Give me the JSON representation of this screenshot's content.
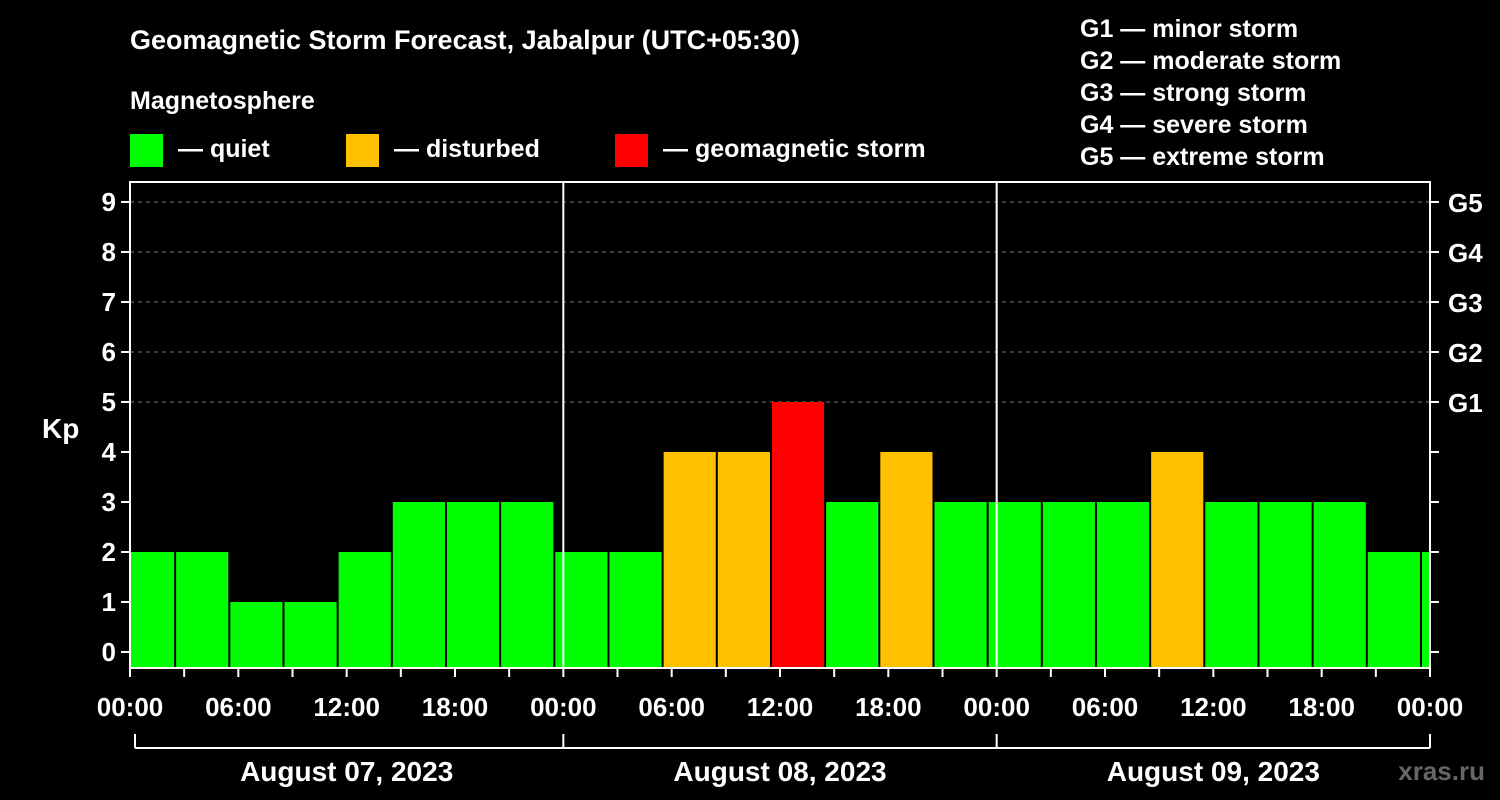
{
  "title": "Geomagnetic Storm Forecast, Jabalpur (UTC+05:30)",
  "legend": {
    "heading": "Magnetosphere",
    "items": [
      {
        "label": "— quiet",
        "color": "#00ff00"
      },
      {
        "label": "— disturbed",
        "color": "#ffc000"
      },
      {
        "label": "— geomagnetic storm",
        "color": "#ff0000"
      }
    ]
  },
  "storm_scale": [
    "G1 — minor storm",
    "G2 — moderate storm",
    "G3 — strong storm",
    "G4 — severe storm",
    "G5 — extreme storm"
  ],
  "watermark": "xras.ru",
  "chart_data": {
    "type": "bar",
    "title": "Geomagnetic Storm Forecast, Jabalpur (UTC+05:30)",
    "ylabel": "Kp",
    "ylim": [
      0,
      9
    ],
    "y_ticks": [
      "0",
      "1",
      "2",
      "3",
      "4",
      "5",
      "6",
      "7",
      "8",
      "9"
    ],
    "right_ticks": [
      {
        "kp": 5,
        "label": "G1"
      },
      {
        "kp": 6,
        "label": "G2"
      },
      {
        "kp": 7,
        "label": "G3"
      },
      {
        "kp": 8,
        "label": "G4"
      },
      {
        "kp": 9,
        "label": "G5"
      }
    ],
    "x_ticks": [
      "00:00",
      "06:00",
      "12:00",
      "18:00",
      "00:00",
      "06:00",
      "12:00",
      "18:00",
      "00:00",
      "06:00",
      "12:00",
      "18:00",
      "00:00"
    ],
    "x_range_hours": [
      0,
      72
    ],
    "dates": [
      "August 07, 2023",
      "August 08, 2023",
      "August 09, 2023"
    ],
    "grid": "horizontal dashed",
    "colors": {
      "quiet": "#00ff00",
      "disturbed": "#ffc000",
      "storm": "#ff0000"
    },
    "bars": [
      {
        "start": 0,
        "end": 2.5,
        "kp": 2,
        "status": "quiet"
      },
      {
        "start": 2.5,
        "end": 5.5,
        "kp": 2,
        "status": "quiet"
      },
      {
        "start": 5.5,
        "end": 8.5,
        "kp": 1,
        "status": "quiet"
      },
      {
        "start": 8.5,
        "end": 11.5,
        "kp": 1,
        "status": "quiet"
      },
      {
        "start": 11.5,
        "end": 14.5,
        "kp": 2,
        "status": "quiet"
      },
      {
        "start": 14.5,
        "end": 17.5,
        "kp": 3,
        "status": "quiet"
      },
      {
        "start": 17.5,
        "end": 20.5,
        "kp": 3,
        "status": "quiet"
      },
      {
        "start": 20.5,
        "end": 23.5,
        "kp": 3,
        "status": "quiet"
      },
      {
        "start": 23.5,
        "end": 26.5,
        "kp": 2,
        "status": "quiet"
      },
      {
        "start": 26.5,
        "end": 29.5,
        "kp": 2,
        "status": "quiet"
      },
      {
        "start": 29.5,
        "end": 32.5,
        "kp": 4,
        "status": "disturbed"
      },
      {
        "start": 32.5,
        "end": 35.5,
        "kp": 4,
        "status": "disturbed"
      },
      {
        "start": 35.5,
        "end": 38.5,
        "kp": 5,
        "status": "storm"
      },
      {
        "start": 38.5,
        "end": 41.5,
        "kp": 3,
        "status": "quiet"
      },
      {
        "start": 41.5,
        "end": 44.5,
        "kp": 4,
        "status": "disturbed"
      },
      {
        "start": 44.5,
        "end": 47.5,
        "kp": 3,
        "status": "quiet"
      },
      {
        "start": 47.5,
        "end": 50.5,
        "kp": 3,
        "status": "quiet"
      },
      {
        "start": 50.5,
        "end": 53.5,
        "kp": 3,
        "status": "quiet"
      },
      {
        "start": 53.5,
        "end": 56.5,
        "kp": 3,
        "status": "quiet"
      },
      {
        "start": 56.5,
        "end": 59.5,
        "kp": 4,
        "status": "disturbed"
      },
      {
        "start": 59.5,
        "end": 62.5,
        "kp": 3,
        "status": "quiet"
      },
      {
        "start": 62.5,
        "end": 65.5,
        "kp": 3,
        "status": "quiet"
      },
      {
        "start": 65.5,
        "end": 68.5,
        "kp": 3,
        "status": "quiet"
      },
      {
        "start": 68.5,
        "end": 71.5,
        "kp": 2,
        "status": "quiet"
      },
      {
        "start": 71.5,
        "end": 72,
        "kp": 2,
        "status": "quiet"
      }
    ]
  }
}
